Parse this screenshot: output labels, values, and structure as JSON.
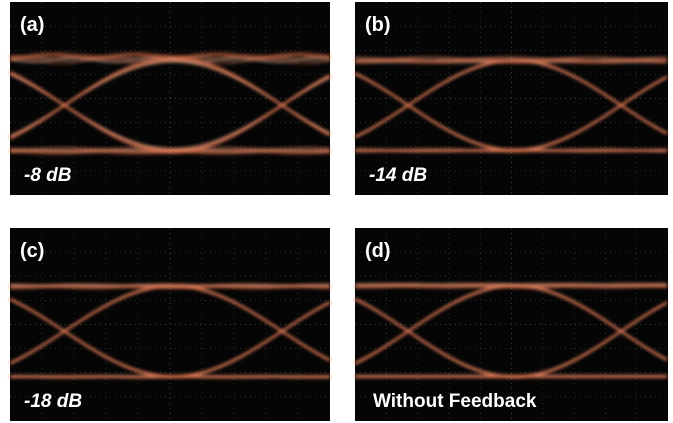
{
  "panels": [
    {
      "label": "(a)",
      "caption": "-8 dB"
    },
    {
      "label": "(b)",
      "caption": "-14 dB"
    },
    {
      "label": "(c)",
      "caption": "-18 dB"
    },
    {
      "label": "(d)",
      "caption": "Without Feedback"
    }
  ]
}
